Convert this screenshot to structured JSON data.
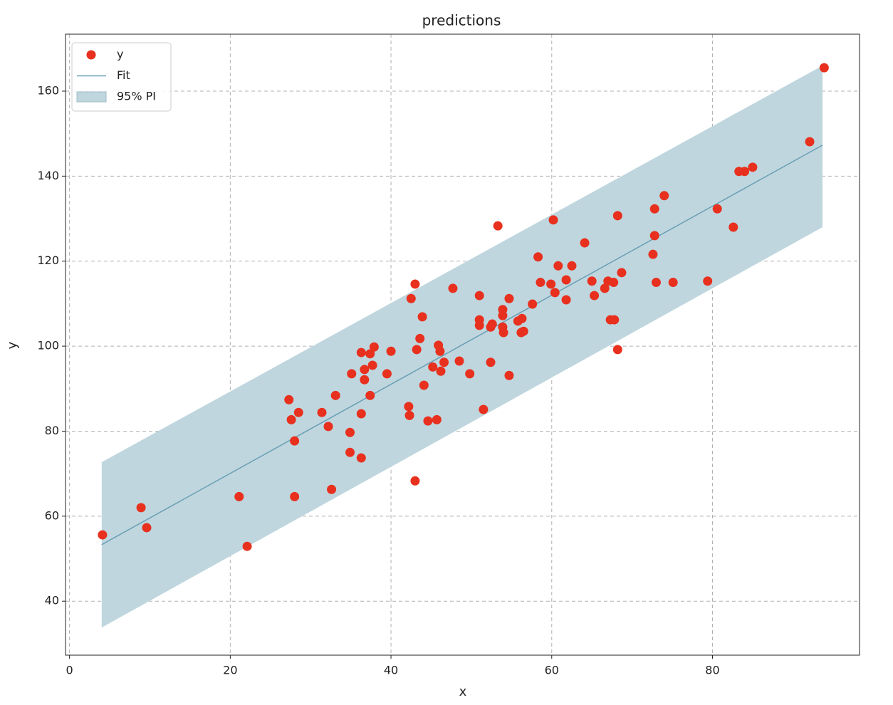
{
  "chart_data": {
    "type": "scatter",
    "title": "predictions",
    "x_label": "x",
    "y_label": "y",
    "xlim": [
      -0.5,
      98.3
    ],
    "ylim": [
      27.3,
      173.4
    ],
    "xticks": [
      0,
      20,
      40,
      60,
      80
    ],
    "yticks": [
      40,
      60,
      80,
      100,
      120,
      140,
      160
    ],
    "grid": true,
    "legend": "upper left",
    "series": [
      {
        "name": "y",
        "color": "#e8301e",
        "x": [
          4.1,
          8.9,
          9.6,
          21.1,
          22.1,
          27.3,
          27.6,
          28.5,
          28.0,
          28.0,
          31.4,
          32.2,
          32.6,
          33.1,
          34.9,
          34.9,
          35.1,
          36.3,
          36.3,
          36.3,
          36.7,
          36.7,
          37.4,
          37.4,
          37.7,
          37.9,
          39.5,
          40.0,
          42.2,
          42.3,
          42.5,
          43.0,
          43.0,
          43.2,
          43.6,
          43.9,
          44.1,
          44.6,
          45.2,
          45.7,
          45.9,
          46.1,
          46.2,
          46.6,
          47.7,
          48.5,
          49.8,
          51.0,
          51.0,
          51.0,
          51.5,
          52.4,
          52.4,
          52.6,
          53.3,
          53.9,
          53.9,
          53.9,
          54.0,
          54.7,
          54.7,
          55.8,
          56.2,
          56.3,
          56.5,
          57.6,
          58.3,
          58.6,
          59.9,
          60.2,
          60.4,
          60.8,
          61.8,
          61.8,
          62.5,
          64.1,
          65.0,
          65.3,
          66.6,
          67.0,
          67.3,
          67.7,
          67.8,
          68.2,
          68.2,
          68.7,
          72.6,
          72.8,
          72.8,
          73.0,
          74.0,
          75.1,
          79.4,
          80.6,
          82.6,
          83.3,
          84.0,
          85.0,
          92.1,
          93.9
        ],
        "values": [
          55.6,
          62.0,
          57.3,
          64.6,
          52.9,
          87.4,
          82.7,
          84.4,
          77.7,
          64.6,
          84.4,
          81.1,
          66.3,
          88.4,
          79.7,
          75.0,
          93.5,
          73.7,
          84.1,
          98.5,
          94.5,
          92.1,
          98.2,
          88.4,
          95.5,
          99.8,
          93.5,
          98.8,
          85.8,
          83.7,
          111.2,
          114.6,
          68.3,
          99.2,
          101.8,
          106.9,
          90.8,
          82.4,
          95.1,
          82.7,
          100.2,
          98.8,
          94.1,
          96.2,
          113.6,
          96.5,
          93.5,
          111.9,
          106.2,
          104.9,
          85.1,
          96.2,
          104.5,
          105.2,
          128.3,
          108.6,
          107.2,
          104.5,
          103.2,
          111.2,
          93.1,
          105.9,
          103.2,
          106.5,
          103.5,
          109.9,
          121.0,
          115.0,
          114.6,
          129.7,
          112.6,
          118.9,
          110.9,
          115.6,
          118.9,
          124.3,
          115.3,
          111.9,
          113.6,
          115.3,
          106.2,
          115.0,
          106.2,
          130.7,
          99.2,
          117.3,
          121.6,
          132.3,
          126.0,
          115.0,
          135.4,
          115.0,
          115.3,
          132.3,
          128.0,
          141.1,
          141.1,
          142.1,
          148.1,
          165.5
        ]
      },
      {
        "name": "Fit",
        "color": "#6a9fb5",
        "x": [
          4,
          93.7
        ],
        "values": [
          53.3,
          147.3
        ]
      },
      {
        "name": "95% PI",
        "color": "#bfd6de",
        "x": [
          4,
          93.7
        ],
        "lower": [
          33.8,
          128.0
        ],
        "upper": [
          72.7,
          166.0
        ]
      }
    ]
  }
}
